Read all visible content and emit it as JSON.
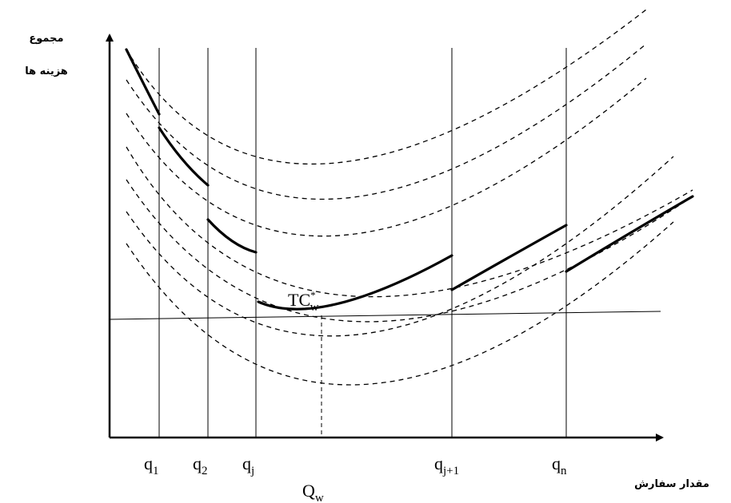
{
  "diagram": {
    "y_axis_label_line1": "مجموع",
    "y_axis_label_line2": "هزینه ها",
    "x_axis_label": "مقدار سفارش",
    "optimum_label": "TC",
    "optimum_sup": "*",
    "optimum_sub": "w",
    "optimum_q_label": "Q",
    "optimum_q_sub": "w",
    "breakpoints": [
      {
        "base": "q",
        "sub": "1"
      },
      {
        "base": "q",
        "sub": "2"
      },
      {
        "base": "q",
        "sub": "j"
      },
      {
        "base": "q",
        "sub": "j+1"
      },
      {
        "base": "q",
        "sub": "n"
      }
    ],
    "colors": {
      "line": "#000000",
      "background": "#ffffff"
    }
  }
}
